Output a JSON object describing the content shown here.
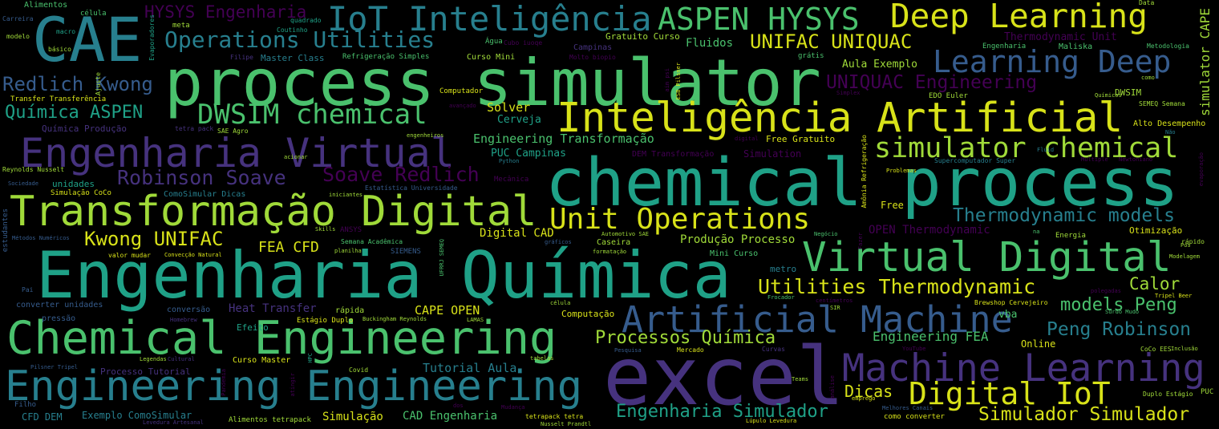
{
  "palette": {
    "background": "#000000",
    "yellow": "#d8e219",
    "lime": "#a0da39",
    "green": "#4ac16d",
    "teal": "#1fa187",
    "cyan": "#277f8e",
    "blue": "#365c8d",
    "indigo": "#46327e",
    "purple": "#440154"
  },
  "words": [
    "chemical process",
    "process simulator",
    "Engenharia Química",
    "excel",
    "CAE",
    "Chemical Engineering",
    "Engineering Engineering",
    "Transformação Digital",
    "Engenharia Virtual",
    "Virtual Digital",
    "Inteligência Artificial",
    "Machine Learning",
    "Artificial Machine",
    "IoT Inteligência",
    "ASPEN HYSYS",
    "Deep Learning",
    "Learning Deep",
    "simulator chemical",
    "Unit Operations",
    "DWSIM chemical",
    "Operations Utilities",
    "Digital IoT",
    "Utilities Thermodynamic",
    "Engenharia Simulador",
    "Simulador Simulador",
    "UNIFAC UNIQUAC",
    "UNIQUAC Engineering",
    "Thermodynamic models",
    "Redlich Kwong",
    "Robinson Soave",
    "Soave Redlich",
    "Química ASPEN",
    "Kwong UNIFAC",
    "HYSYS Engenharia",
    "Peng Robinson",
    "models Peng",
    "Processos Química",
    "FEA CFD",
    "simulator CAPE",
    "Engineering FEA",
    "Dicas",
    "Calor",
    "CAPE OPEN",
    "Tutorial Aula",
    "Heat Transfer",
    "Digital CAD",
    "Produção Processo",
    "OPEN Thermodynamic",
    "Thermodynamic Unit",
    "Engineering Transformação",
    "PUC Campinas",
    "Solver",
    "Cerveja",
    "Gratuito Curso",
    "Fluidos",
    "Aula Exemplo",
    "Master Class",
    "Refrigeração Simples",
    "Curso Mini",
    "Alimentos",
    "célula",
    "Carreira",
    "modelo",
    "macro",
    "básico",
    "Evaporadores",
    "meta",
    "quadrado",
    "Coutinho",
    "Filipe",
    "Água",
    "Cubo iuoqe",
    "Campinas",
    "Molto biopio",
    "Engenharia",
    "Maliska",
    "Metodologia",
    "Data",
    "grátis",
    "Ajuste",
    "Transfer Transferência",
    "Química Produção",
    "Computador",
    "avançado",
    "EDO Euler",
    "DWSIM",
    "Químicos",
    "SEMEQ Semana",
    "como",
    "Simplex",
    "tetra pack",
    "SAE Agro",
    "ESB Pilsner",
    "aim psi",
    "Alto Desempenho",
    "Não",
    "Free Gratuito",
    "Simulation",
    "DEM Transformação",
    "digital",
    "engenheiros",
    "Python",
    "Fluid",
    "Supercomputador Super",
    "Multiple",
    "Newtoniano",
    "evaporação",
    "Reynolds Nusselt",
    "acionar",
    "Sociedade",
    "unidades",
    "Mecânica",
    "Estatística Universidade",
    "Simulação CoCo",
    "ComoSimular Dicas",
    "iniciantes",
    "Amônia Refrigeração",
    "Problemas",
    "Free",
    "estudantes",
    "Métodos Numéricos",
    "Skills",
    "ANSYS",
    "Semana Acadêmica",
    "Automotivo SAE",
    "gráficos",
    "Negócio",
    "Fazer",
    "na",
    "Energia",
    "Otimização",
    "rápido",
    "Pós",
    "valor mudar",
    "Convecção Natural",
    "planilha",
    "SIEMENS",
    "UFRRJ SEMEQ",
    "Caseira",
    "formatação",
    "Mini Curso",
    "Modelagem",
    "metro",
    "Pai",
    "converter unidades",
    "polegadas",
    "Frocador",
    "centímetros",
    "Tripel Beer",
    "conversão",
    "rápida",
    "Homebrew",
    "pressão",
    "Estágio Duplo",
    "Buckingham Reynolds",
    "LAMAS",
    "Computação",
    "célula",
    "SIR",
    "Brewshop Cervejeiro",
    "vba",
    "Surdo Mudo",
    "Efeito",
    "Online",
    "CoCo EES",
    "Inclusão",
    "Pilsner Tripel",
    "Legendas",
    "Cultural",
    "Curso Master",
    "HPC",
    "tabelas",
    "Pesquisa",
    "Mercado",
    "Curvas",
    "YouTube",
    "Processo Tutorial",
    "Covid",
    "Pandemia",
    "atingir",
    "Teams",
    "análise",
    "emprego",
    "Duplo Estágio",
    "PUC",
    "Filho",
    "dos",
    "Melhores Canais",
    "Mudança",
    "tetrapack tetra",
    "Nusselt Prandtl",
    "Lúpulo Levedura",
    "Levedura Artesanal",
    "Alimentos tetrapack",
    "Simulação",
    "CAD Engenharia",
    "Exemplo ComoSimular",
    "CFD DEM",
    "como converter"
  ]
}
